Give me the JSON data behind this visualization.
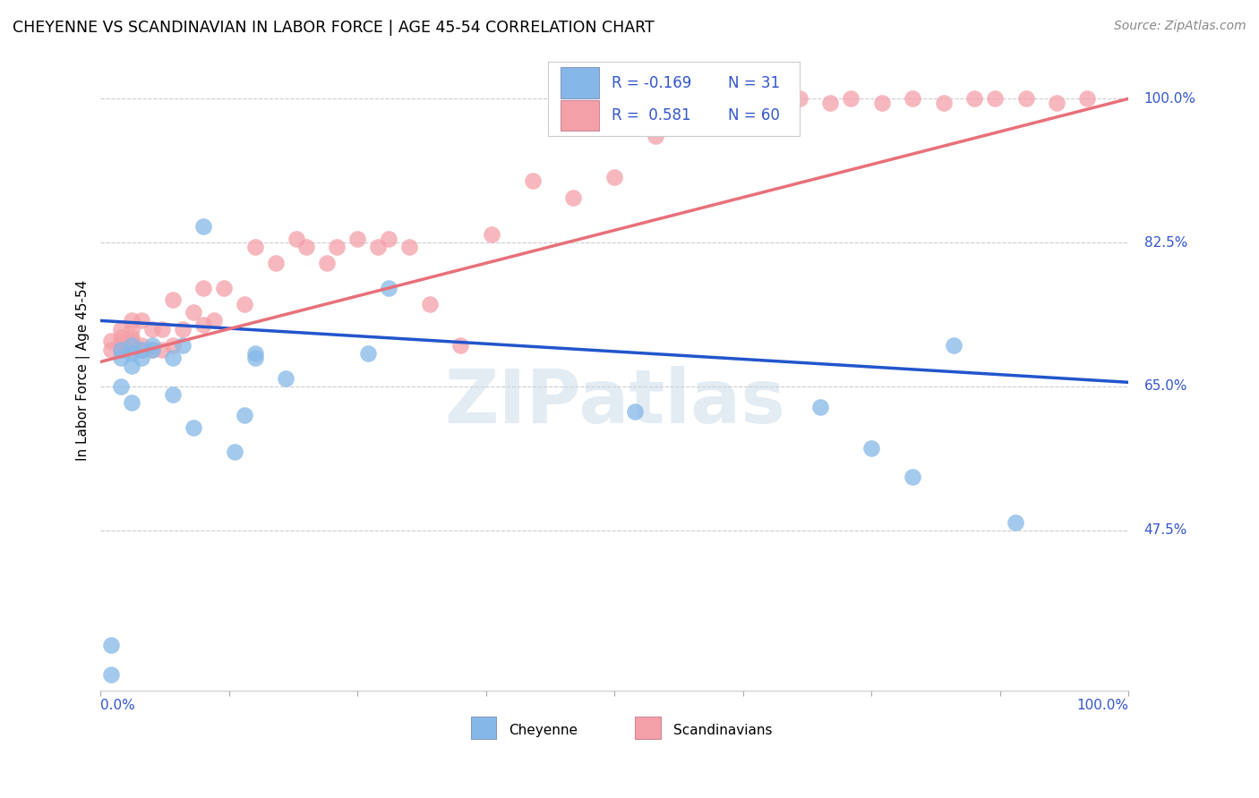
{
  "title": "CHEYENNE VS SCANDINAVIAN IN LABOR FORCE | AGE 45-54 CORRELATION CHART",
  "source": "Source: ZipAtlas.com",
  "ylabel": "In Labor Force | Age 45-54",
  "ytick_labels": [
    "100.0%",
    "82.5%",
    "65.0%",
    "47.5%"
  ],
  "ytick_values": [
    1.0,
    0.825,
    0.65,
    0.475
  ],
  "xlim": [
    0.0,
    1.0
  ],
  "ylim": [
    0.28,
    1.06
  ],
  "legend_r_cheyenne": "-0.169",
  "legend_n_cheyenne": "31",
  "legend_r_scandinavian": "0.581",
  "legend_n_scandinavian": "60",
  "cheyenne_color": "#85B8E8",
  "scandinavian_color": "#F4A0A8",
  "cheyenne_line_color": "#2255CC",
  "scandinavian_line_color": "#E8707A",
  "watermark": "ZIPatlas",
  "cheyenne_x": [
    0.01,
    0.01,
    0.02,
    0.02,
    0.02,
    0.03,
    0.03,
    0.03,
    0.03,
    0.04,
    0.04,
    0.05,
    0.05,
    0.07,
    0.07,
    0.08,
    0.09,
    0.1,
    0.13,
    0.14,
    0.15,
    0.15,
    0.18,
    0.26,
    0.28,
    0.52,
    0.7,
    0.75,
    0.79,
    0.83,
    0.89
  ],
  "cheyenne_y": [
    0.335,
    0.3,
    0.65,
    0.685,
    0.695,
    0.63,
    0.675,
    0.69,
    0.7,
    0.685,
    0.695,
    0.695,
    0.7,
    0.64,
    0.685,
    0.7,
    0.6,
    0.845,
    0.57,
    0.615,
    0.685,
    0.69,
    0.66,
    0.69,
    0.77,
    0.62,
    0.625,
    0.575,
    0.54,
    0.7,
    0.485
  ],
  "scandinavian_x": [
    0.01,
    0.01,
    0.02,
    0.02,
    0.02,
    0.02,
    0.02,
    0.03,
    0.03,
    0.03,
    0.03,
    0.03,
    0.04,
    0.04,
    0.04,
    0.05,
    0.05,
    0.06,
    0.06,
    0.07,
    0.07,
    0.08,
    0.09,
    0.1,
    0.1,
    0.11,
    0.12,
    0.14,
    0.15,
    0.17,
    0.19,
    0.2,
    0.22,
    0.23,
    0.25,
    0.27,
    0.28,
    0.3,
    0.32,
    0.35,
    0.38,
    0.42,
    0.46,
    0.5,
    0.54,
    0.57,
    0.6,
    0.62,
    0.65,
    0.68,
    0.71,
    0.73,
    0.76,
    0.79,
    0.82,
    0.85,
    0.87,
    0.9,
    0.93,
    0.96
  ],
  "scandinavian_y": [
    0.695,
    0.705,
    0.695,
    0.7,
    0.705,
    0.71,
    0.72,
    0.695,
    0.705,
    0.71,
    0.72,
    0.73,
    0.695,
    0.7,
    0.73,
    0.695,
    0.72,
    0.695,
    0.72,
    0.7,
    0.755,
    0.72,
    0.74,
    0.725,
    0.77,
    0.73,
    0.77,
    0.75,
    0.82,
    0.8,
    0.83,
    0.82,
    0.8,
    0.82,
    0.83,
    0.82,
    0.83,
    0.82,
    0.75,
    0.7,
    0.835,
    0.9,
    0.88,
    0.905,
    0.955,
    0.97,
    0.985,
    0.995,
    0.995,
    1.0,
    0.995,
    1.0,
    0.995,
    1.0,
    0.995,
    1.0,
    1.0,
    1.0,
    0.995,
    1.0
  ],
  "cheyenne_trend_x": [
    0.0,
    1.0
  ],
  "cheyenne_trend_y": [
    0.73,
    0.655
  ],
  "scandinavian_trend_x": [
    0.0,
    1.0
  ],
  "scandinavian_trend_y": [
    0.68,
    1.0
  ]
}
